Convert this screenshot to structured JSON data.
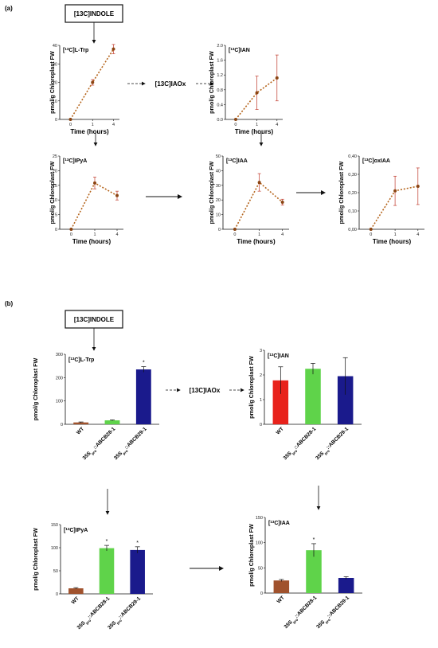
{
  "panels": {
    "a": "(a)",
    "b": "(b)"
  },
  "section_a": {
    "indole_box": "[13C]INDOLE",
    "iaox": "[13C]IAOx",
    "charts": [
      {
        "id": "a_trp",
        "title": "[13C]L-Trp",
        "ylabel": "pmol/g Chloroplast FW",
        "xlabel": "Time (hours)",
        "yticks": [
          "0",
          "10",
          "20",
          "30",
          "40"
        ],
        "xticks": [
          "0",
          "1",
          "4"
        ]
      },
      {
        "id": "a_ian",
        "title": "[13C]IAN",
        "ylabel": "pmol/g Chloroplast FW",
        "xlabel": "Time (hours)",
        "yticks": [
          "0.0",
          "0.4",
          "0.8",
          "1.2",
          "1.6",
          "2.0"
        ],
        "xticks": [
          "0",
          "1",
          "4"
        ]
      },
      {
        "id": "a_ipya",
        "title": "[13C]IPyA",
        "ylabel": "pmol/g Chloroplast FW",
        "xlabel": "Time (hours)",
        "yticks": [
          "0",
          "5",
          "10",
          "15",
          "20",
          "25"
        ],
        "xticks": [
          "0",
          "1",
          "4"
        ]
      },
      {
        "id": "a_iaa",
        "title": "[13C]IAA",
        "ylabel": "pmol/g Chloroplast FW",
        "xlabel": "Time (hours)",
        "yticks": [
          "0",
          "10",
          "20",
          "30",
          "40",
          "50"
        ],
        "xticks": [
          "0",
          "1",
          "4"
        ]
      },
      {
        "id": "a_oxiaa",
        "title": "[13C]oxIAA",
        "ylabel": "pmol/g Chloroplast FW",
        "xlabel": "Time (hours)",
        "yticks": [
          "0,00",
          "0,10",
          "0,20",
          "0,30",
          "0,40"
        ],
        "xticks": [
          "0",
          "1",
          "4"
        ]
      }
    ]
  },
  "section_b": {
    "indole_box": "[13C]INDOLE",
    "iaox": "[13C]IAOx",
    "categories": [
      "WT",
      "35Spro::ABCB28-1",
      "35Spro::ABCB29-1"
    ],
    "charts": [
      {
        "id": "b_trp",
        "title": "[13C]L-Trp",
        "ylabel": "pmol/g Chloroplast FW",
        "yticks": [
          "0",
          "100",
          "200",
          "300"
        ]
      },
      {
        "id": "b_ian",
        "title": "[13C]IAN",
        "ylabel": "pmol/g Chloroplast FW",
        "yticks": [
          "0",
          "1",
          "2",
          "3"
        ]
      },
      {
        "id": "b_ipya",
        "title": "[13C]IPyA",
        "ylabel": "pmol/g Chloroplast FW",
        "yticks": [
          "0",
          "50",
          "100",
          "150"
        ]
      },
      {
        "id": "b_iaa",
        "title": "[13C]IAA",
        "ylabel": "pmol/g Chloroplast FW",
        "yticks": [
          "0",
          "50",
          "100",
          "150"
        ]
      }
    ]
  },
  "colors": {
    "line": "#b5651d",
    "marker": "#8b4513",
    "error": "#c0392b",
    "wt_trp": "#a0522d",
    "wt_ian": "#e8221b",
    "abcb28": "#5fd34a",
    "abcb29": "#1a1a8c"
  },
  "chart_data": [
    {
      "type": "line",
      "title": "[13C]L-Trp",
      "xlabel": "Time (hours)",
      "ylabel": "pmol/g Chloroplast FW",
      "x": [
        "0",
        "1",
        "4"
      ],
      "values": [
        0,
        20,
        38
      ],
      "errors": [
        0,
        1.5,
        2.5
      ],
      "ylim": [
        0,
        40
      ]
    },
    {
      "type": "line",
      "title": "[13C]IAN",
      "xlabel": "Time (hours)",
      "ylabel": "pmol/g Chloroplast FW",
      "x": [
        "0",
        "1",
        "4"
      ],
      "values": [
        0,
        0.72,
        1.12
      ],
      "errors": [
        0,
        0.45,
        0.62
      ],
      "ylim": [
        0,
        2.0
      ]
    },
    {
      "type": "line",
      "title": "[13C]IPyA",
      "xlabel": "Time (hours)",
      "ylabel": "pmol/g Chloroplast FW",
      "x": [
        "0",
        "1",
        "4"
      ],
      "values": [
        0,
        15.8,
        11.5
      ],
      "errors": [
        0,
        2.0,
        1.5
      ],
      "ylim": [
        0,
        25
      ]
    },
    {
      "type": "line",
      "title": "[13C]IAA",
      "xlabel": "Time (hours)",
      "ylabel": "pmol/g Chloroplast FW",
      "x": [
        "0",
        "1",
        "4"
      ],
      "values": [
        0,
        32,
        18.5
      ],
      "errors": [
        0,
        6,
        2
      ],
      "ylim": [
        0,
        50
      ]
    },
    {
      "type": "line",
      "title": "[13C]oxIAA",
      "xlabel": "Time (hours)",
      "ylabel": "pmol/g Chloroplast FW",
      "x": [
        "0",
        "1",
        "4"
      ],
      "values": [
        0,
        0.21,
        0.235
      ],
      "errors": [
        0,
        0.08,
        0.1
      ],
      "ylim": [
        0,
        0.4
      ]
    },
    {
      "type": "bar",
      "title": "[13C]L-Trp",
      "ylabel": "pmol/g Chloroplast FW",
      "categories": [
        "WT",
        "35Spro::ABCB28-1",
        "35Spro::ABCB29-1"
      ],
      "values": [
        8,
        17,
        235
      ],
      "errors": [
        2,
        2,
        12
      ],
      "significant": [
        false,
        false,
        true
      ],
      "ylim": [
        0,
        300
      ]
    },
    {
      "type": "bar",
      "title": "[13C]IAN",
      "ylabel": "pmol/g Chloroplast FW",
      "categories": [
        "WT",
        "35Spro::ABCB28-1",
        "35Spro::ABCB29-1"
      ],
      "values": [
        1.78,
        2.25,
        1.95
      ],
      "errors": [
        0.55,
        0.22,
        0.75
      ],
      "significant": [
        false,
        false,
        false
      ],
      "ylim": [
        0,
        3
      ]
    },
    {
      "type": "bar",
      "title": "[13C]IPyA",
      "ylabel": "pmol/g Chloroplast FW",
      "categories": [
        "WT",
        "35Spro::ABCB28-1",
        "35Spro::ABCB29-1"
      ],
      "values": [
        12,
        99,
        95
      ],
      "errors": [
        1.5,
        6,
        7
      ],
      "significant": [
        false,
        true,
        true
      ],
      "ylim": [
        0,
        150
      ]
    },
    {
      "type": "bar",
      "title": "[13C]IAA",
      "ylabel": "pmol/g Chloroplast FW",
      "categories": [
        "WT",
        "35Spro::ABCB28-1",
        "35Spro::ABCB29-1"
      ],
      "values": [
        25,
        85,
        30
      ],
      "errors": [
        2,
        13,
        2.5
      ],
      "significant": [
        false,
        true,
        false
      ],
      "ylim": [
        0,
        150
      ]
    }
  ]
}
